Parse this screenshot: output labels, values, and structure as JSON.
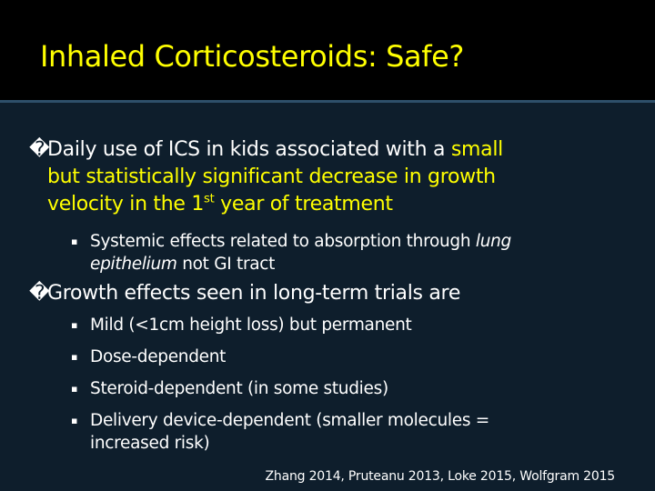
{
  "slide": {
    "title": "Inhaled Corticosteroids: Safe?",
    "colors": {
      "title_bar": "#000000",
      "content_bg": "#0e1e2c",
      "divider": "#2e4f6a",
      "accent_yellow": "#ffff00",
      "body_text": "#ffffff"
    }
  },
  "bullet1": {
    "glyph": "�",
    "prefix": "Daily use of ICS in kids associated with a ",
    "highlight_line1": "small",
    "highlight_line2": "but statistically significant decrease in growth",
    "highlight_line3a": "velocity in the 1",
    "highlight_sup": "st",
    "highlight_line3b": " year of treatment",
    "sub": {
      "glyph": "▪",
      "text_a": "Systemic effects related to absorption through ",
      "text_italic1": "lung",
      "text_italic2": "epithelium",
      "text_b": " not GI tract"
    }
  },
  "bullet2": {
    "glyph": "�",
    "text": "Growth effects seen in long-term trials are",
    "subs": [
      {
        "glyph": "▪",
        "text": "Mild (<1cm height loss) but permanent"
      },
      {
        "glyph": "▪",
        "text": "Dose-dependent"
      },
      {
        "glyph": "▪",
        "text": "Steroid-dependent (in some studies)"
      },
      {
        "glyph": "▪",
        "line1": "Delivery device-dependent (smaller molecules =",
        "line2": "increased risk)"
      }
    ]
  },
  "citation": "Zhang 2014, Pruteanu 2013, Loke 2015, Wolfgram 2015"
}
